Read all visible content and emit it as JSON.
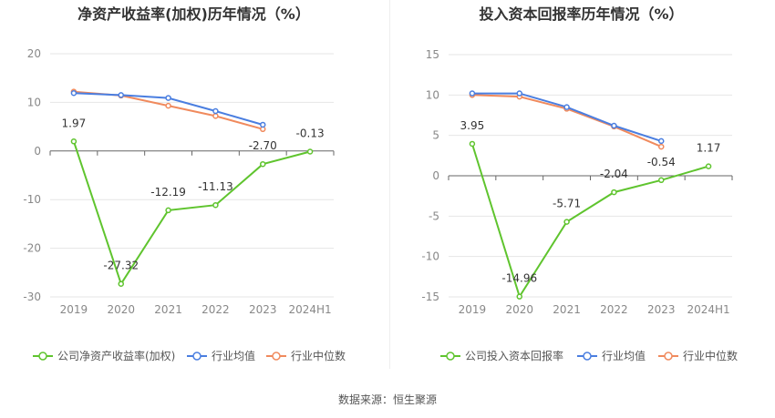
{
  "colors": {
    "company": "#5fc42e",
    "avg": "#4a7ee0",
    "median": "#f08a5d"
  },
  "footer": {
    "source": "数据来源：恒生聚源"
  },
  "chart_data": [
    {
      "type": "line",
      "title": "净资产收益率(加权)历年情况（%）",
      "categories": [
        "2019",
        "2020",
        "2021",
        "2022",
        "2023",
        "2024H1"
      ],
      "ylim": [
        -30,
        20
      ],
      "yticks": [
        20,
        10,
        0,
        -10,
        -20,
        -30
      ],
      "grid": true,
      "legend_position": "bottom-left",
      "series": [
        {
          "name": "公司净资产收益率(加权)",
          "key": "company",
          "values": [
            1.97,
            -27.32,
            -12.19,
            -11.13,
            -2.7,
            -0.13
          ],
          "labels": [
            "1.97",
            "-27.32",
            "-12.19",
            "-11.13",
            "-2.70",
            "-0.13"
          ]
        },
        {
          "name": "行业均值",
          "key": "avg",
          "values": [
            11.9,
            11.5,
            10.9,
            8.2,
            5.4,
            null
          ]
        },
        {
          "name": "行业中位数",
          "key": "median",
          "values": [
            12.2,
            11.4,
            9.3,
            7.2,
            4.5,
            null
          ]
        }
      ]
    },
    {
      "type": "line",
      "title": "投入资本回报率历年情况（%）",
      "categories": [
        "2019",
        "2020",
        "2021",
        "2022",
        "2023",
        "2024H1"
      ],
      "ylim": [
        -15,
        15
      ],
      "yticks": [
        15,
        10,
        5,
        0,
        -5,
        -10,
        -15
      ],
      "grid": true,
      "legend_position": "bottom-left",
      "series": [
        {
          "name": "公司投入资本回报率",
          "key": "company",
          "values": [
            3.95,
            -14.96,
            -5.71,
            -2.04,
            -0.54,
            1.17
          ],
          "labels": [
            "3.95",
            "-14.96",
            "-5.71",
            "-2.04",
            "-0.54",
            "1.17"
          ]
        },
        {
          "name": "行业均值",
          "key": "avg",
          "values": [
            10.2,
            10.2,
            8.5,
            6.2,
            4.3,
            null
          ]
        },
        {
          "name": "行业中位数",
          "key": "median",
          "values": [
            10.0,
            9.8,
            8.3,
            6.1,
            3.6,
            null
          ]
        }
      ]
    }
  ]
}
